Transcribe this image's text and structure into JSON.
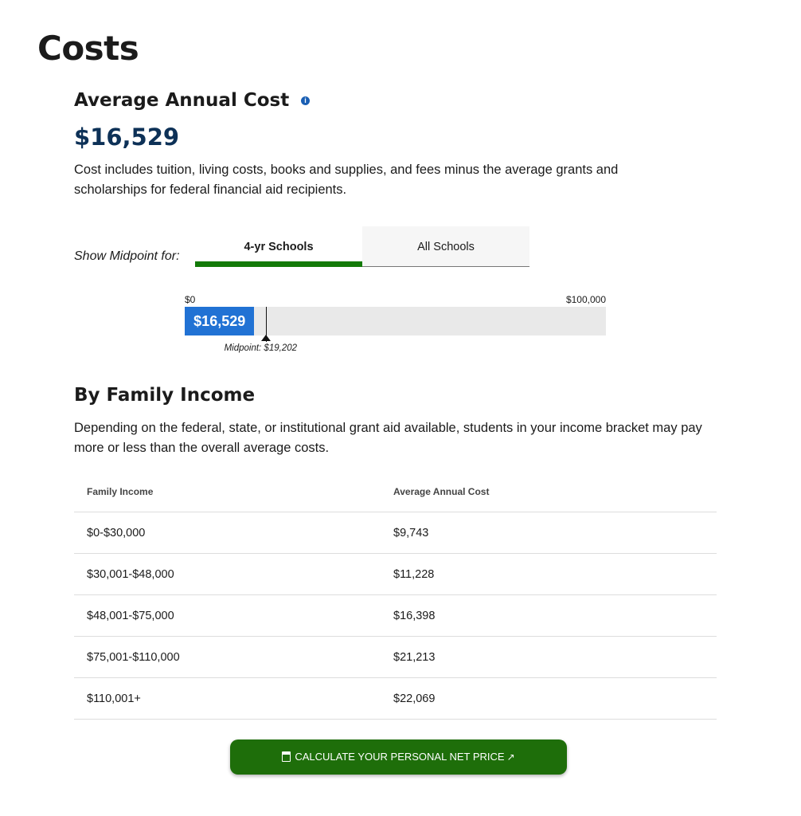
{
  "page_title": "Costs",
  "avg_cost": {
    "heading": "Average Annual Cost",
    "info_icon": "info-icon",
    "value": "$16,529",
    "description": "Cost includes tuition, living costs, books and supplies, and fees minus the average grants and scholarships for federal financial aid recipients."
  },
  "midpoint": {
    "label": "Show Midpoint for:",
    "tabs": [
      {
        "label": "4-yr Schools",
        "active": true
      },
      {
        "label": "All Schools",
        "active": false
      }
    ],
    "bar": {
      "min_label": "$0",
      "max_label": "$100,000",
      "min": 0,
      "max": 100000,
      "value": 16529,
      "value_label": "$16,529",
      "midpoint": 19202,
      "midpoint_label": "Midpoint: $19,202"
    }
  },
  "family_income": {
    "heading": "By Family Income",
    "description": "Depending on the federal, state, or institutional grant aid available, students in your income bracket may pay more or less than the overall average costs.",
    "columns": [
      "Family Income",
      "Average Annual Cost"
    ],
    "rows": [
      [
        "$0-$30,000",
        "$9,743"
      ],
      [
        "$30,001-$48,000",
        "$11,228"
      ],
      [
        "$48,001-$75,000",
        "$16,398"
      ],
      [
        "$75,001-$110,000",
        "$21,213"
      ],
      [
        "$110,001+",
        "$22,069"
      ]
    ]
  },
  "cta": {
    "label": "CALCULATE YOUR PERSONAL NET PRICE",
    "icon": "calculator-icon",
    "external_icon": "external-link-icon"
  },
  "colors": {
    "accent_green": "#1e6e0a",
    "bar_blue": "#2172d4",
    "navy": "#0d3157"
  }
}
